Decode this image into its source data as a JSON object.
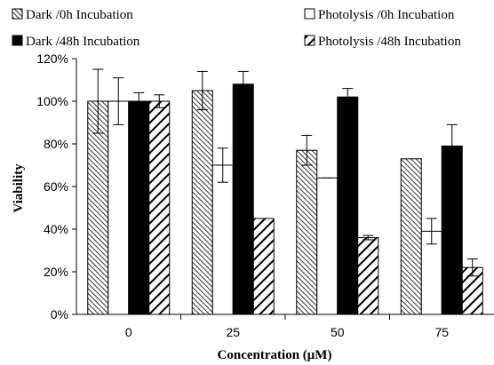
{
  "chart_data": {
    "type": "bar",
    "xlabel": "Concentration (μM)",
    "ylabel": "Viability",
    "ylim": [
      0,
      120
    ],
    "y_ticks": [
      "0%",
      "20%",
      "40%",
      "60%",
      "80%",
      "100%",
      "120%"
    ],
    "y_tick_values": [
      0,
      20,
      40,
      60,
      80,
      100,
      120
    ],
    "categories": [
      "0",
      "25",
      "50",
      "75"
    ],
    "grid": false,
    "legend_position": "top",
    "series": [
      {
        "name": "Dark /0h Incubation",
        "fill": "hatch-dense",
        "values": [
          100,
          105,
          77,
          73
        ],
        "errors": [
          15,
          9,
          7,
          0
        ]
      },
      {
        "name": "Photolysis /0h Incubation",
        "fill": "white",
        "values": [
          100,
          70,
          64,
          39
        ],
        "errors": [
          11,
          8,
          0,
          6
        ]
      },
      {
        "name": "Dark /48h Incubation",
        "fill": "black",
        "values": [
          100,
          108,
          102,
          79
        ],
        "errors": [
          4,
          6,
          4,
          10
        ]
      },
      {
        "name": "Photolysis /48h Incubation",
        "fill": "hatch-bold",
        "values": [
          100,
          45,
          36,
          22
        ],
        "errors": [
          3,
          0,
          1,
          4
        ]
      }
    ],
    "colors": {
      "ink": "#000000",
      "paper": "#ffffff"
    }
  }
}
